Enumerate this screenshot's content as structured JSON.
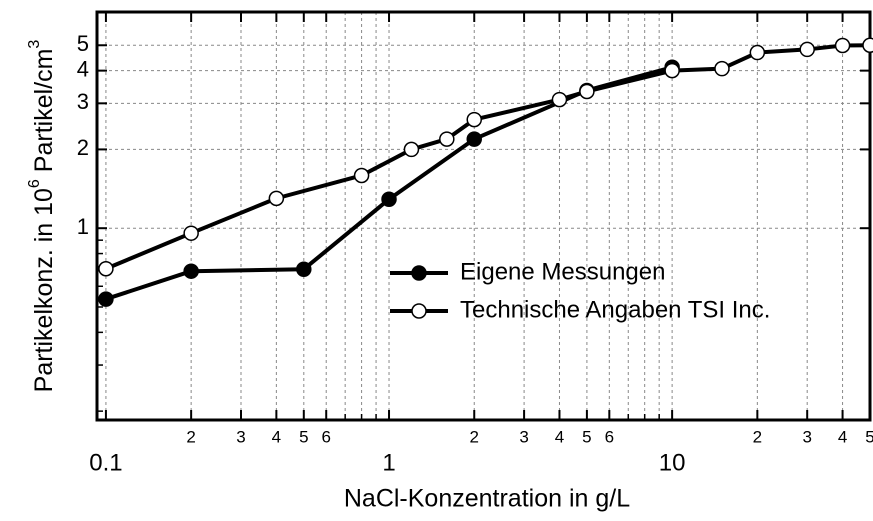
{
  "chart_data": {
    "type": "line",
    "log_x": true,
    "log_y": true,
    "grid": true,
    "legend": "center-right",
    "xlabel": "NaCl-Konzentration in g/L",
    "ylabel": [
      "Partikelkonz. in 10",
      "6",
      " Partikel/cm",
      "3"
    ],
    "xlim": [
      0.093,
      50
    ],
    "ylim": [
      0.185,
      6.7
    ],
    "xticks": [
      0.1,
      {
        "value": 0.2,
        "label": "2"
      },
      {
        "value": 0.3,
        "label": "3"
      },
      {
        "value": 0.4,
        "label": "4"
      },
      {
        "value": 0.5,
        "label": "5"
      },
      {
        "value": 0.6,
        "label": "6"
      },
      1,
      {
        "value": 2,
        "label": "2"
      },
      {
        "value": 3,
        "label": "3"
      },
      {
        "value": 4,
        "label": "4"
      },
      {
        "value": 5,
        "label": "5"
      },
      {
        "value": 6,
        "label": "6"
      },
      10,
      {
        "value": 20,
        "label": "2"
      },
      {
        "value": 30,
        "label": "3"
      },
      {
        "value": 40,
        "label": "4"
      },
      {
        "value": 50,
        "label": "5"
      }
    ],
    "xminor": [
      0.7,
      0.8,
      0.9,
      7,
      8,
      9
    ],
    "yticks": [
      1,
      2,
      3,
      4,
      5
    ],
    "yminor": [
      0.2,
      0.3,
      0.4,
      0.5,
      0.6,
      0.7,
      0.8,
      0.9
    ],
    "series": [
      {
        "name": "Eigene Messungen",
        "color": "#000000",
        "marker": "filled",
        "x": [
          0.1,
          0.2,
          0.5,
          1,
          2,
          5,
          10
        ],
        "values": [
          0.536,
          0.685,
          0.697,
          1.29,
          2.19,
          3.36,
          4.12
        ]
      },
      {
        "name": "Technische Angaben TSI Inc.",
        "color": "#000000",
        "marker": "open",
        "x": [
          0.1,
          0.2,
          0.4,
          0.8,
          1.2,
          1.6,
          2,
          4,
          5,
          10,
          15,
          20,
          30,
          40,
          50
        ],
        "values": [
          0.7,
          0.957,
          1.3,
          1.59,
          2.0,
          2.19,
          2.6,
          3.1,
          3.33,
          4.0,
          4.07,
          4.69,
          4.82,
          4.99,
          5.0
        ]
      }
    ]
  }
}
